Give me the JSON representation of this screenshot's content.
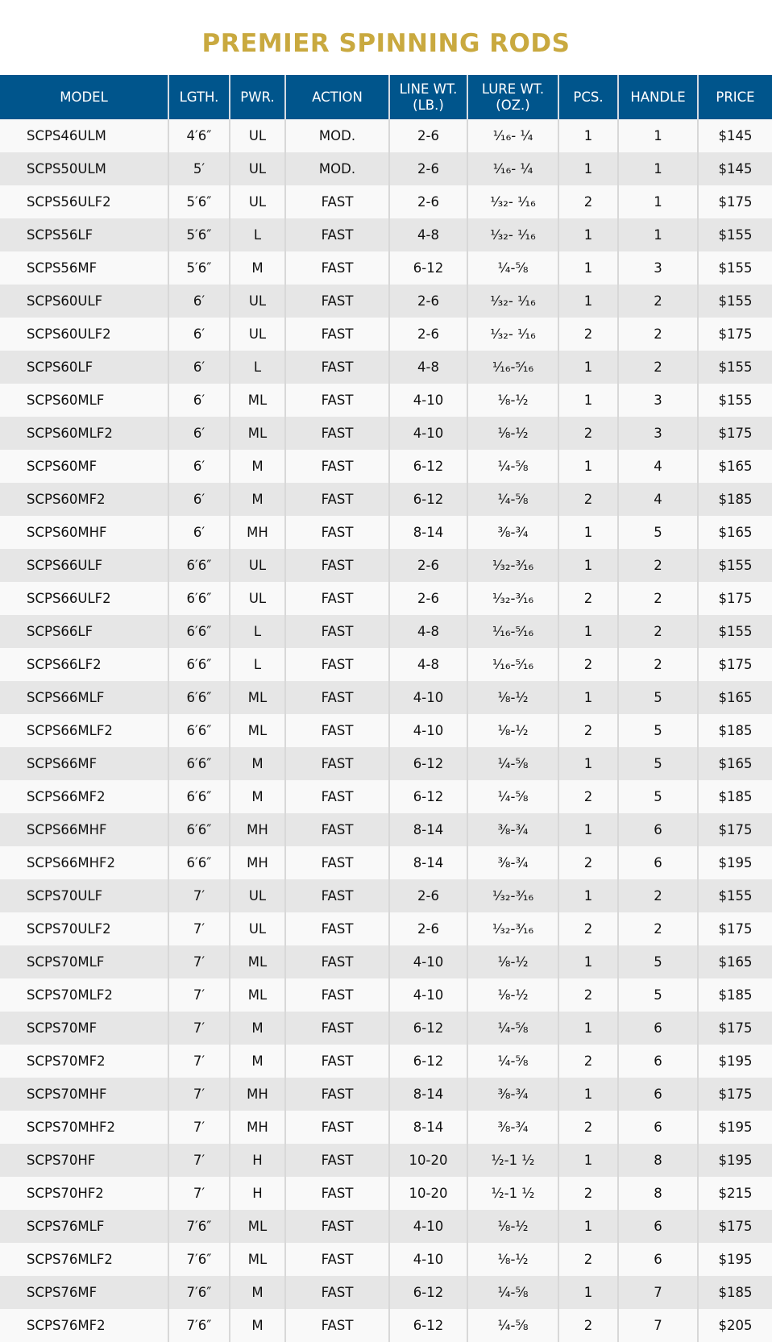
{
  "title": "PREMIER SPINNING RODS",
  "colors": {
    "title": "#c9a93f",
    "header_bg": "#00558c",
    "row_light": "#f9f9f9",
    "row_dark": "#e6e6e6"
  },
  "headers": [
    "MODEL",
    "LGTH.",
    "PWR.",
    "ACTION",
    "LINE WT.\n(LB.)",
    "LURE WT.\n(OZ.)",
    "PCS.",
    "HANDLE",
    "PRICE"
  ],
  "rows": [
    [
      "SCPS46ULM",
      "4′6″",
      "UL",
      "MOD.",
      "2-6",
      "¹⁄₁₆- ¼",
      "1",
      "1",
      "$145"
    ],
    [
      "SCPS50ULM",
      "5′",
      "UL",
      "MOD.",
      "2-6",
      "¹⁄₁₆- ¼",
      "1",
      "1",
      "$145"
    ],
    [
      "SCPS56ULF2",
      "5′6″",
      "UL",
      "FAST",
      "2-6",
      "¹⁄₃₂- ¹⁄₁₆",
      "2",
      "1",
      "$175"
    ],
    [
      "SCPS56LF",
      "5′6″",
      "L",
      "FAST",
      "4-8",
      "¹⁄₃₂- ¹⁄₁₆",
      "1",
      "1",
      "$155"
    ],
    [
      "SCPS56MF",
      "5′6″",
      "M",
      "FAST",
      "6-12",
      "¼-⅝",
      "1",
      "3",
      "$155"
    ],
    [
      "SCPS60ULF",
      "6′",
      "UL",
      "FAST",
      "2-6",
      "¹⁄₃₂- ¹⁄₁₆",
      "1",
      "2",
      "$155"
    ],
    [
      "SCPS60ULF2",
      "6′",
      "UL",
      "FAST",
      "2-6",
      "¹⁄₃₂- ¹⁄₁₆",
      "2",
      "2",
      "$175"
    ],
    [
      "SCPS60LF",
      "6′",
      "L",
      "FAST",
      "4-8",
      "¹⁄₁₆-⁵⁄₁₆",
      "1",
      "2",
      "$155"
    ],
    [
      "SCPS60MLF",
      "6′",
      "ML",
      "FAST",
      "4-10",
      "⅛-½",
      "1",
      "3",
      "$155"
    ],
    [
      "SCPS60MLF2",
      "6′",
      "ML",
      "FAST",
      "4-10",
      "⅛-½",
      "2",
      "3",
      "$175"
    ],
    [
      "SCPS60MF",
      "6′",
      "M",
      "FAST",
      "6-12",
      "¼-⅝",
      "1",
      "4",
      "$165"
    ],
    [
      "SCPS60MF2",
      "6′",
      "M",
      "FAST",
      "6-12",
      "¼-⅝",
      "2",
      "4",
      "$185"
    ],
    [
      "SCPS60MHF",
      "6′",
      "MH",
      "FAST",
      "8-14",
      "⅜-¾",
      "1",
      "5",
      "$165"
    ],
    [
      "SCPS66ULF",
      "6′6″",
      "UL",
      "FAST",
      "2-6",
      "¹⁄₃₂-³⁄₁₆",
      "1",
      "2",
      "$155"
    ],
    [
      "SCPS66ULF2",
      "6′6″",
      "UL",
      "FAST",
      "2-6",
      "¹⁄₃₂-³⁄₁₆",
      "2",
      "2",
      "$175"
    ],
    [
      "SCPS66LF",
      "6′6″",
      "L",
      "FAST",
      "4-8",
      "¹⁄₁₆-⁵⁄₁₆",
      "1",
      "2",
      "$155"
    ],
    [
      "SCPS66LF2",
      "6′6″",
      "L",
      "FAST",
      "4-8",
      "¹⁄₁₆-⁵⁄₁₆",
      "2",
      "2",
      "$175"
    ],
    [
      "SCPS66MLF",
      "6′6″",
      "ML",
      "FAST",
      "4-10",
      "⅛-½",
      "1",
      "5",
      "$165"
    ],
    [
      "SCPS66MLF2",
      "6′6″",
      "ML",
      "FAST",
      "4-10",
      "⅛-½",
      "2",
      "5",
      "$185"
    ],
    [
      "SCPS66MF",
      "6′6″",
      "M",
      "FAST",
      "6-12",
      "¼-⅝",
      "1",
      "5",
      "$165"
    ],
    [
      "SCPS66MF2",
      "6′6″",
      "M",
      "FAST",
      "6-12",
      "¼-⅝",
      "2",
      "5",
      "$185"
    ],
    [
      "SCPS66MHF",
      "6′6″",
      "MH",
      "FAST",
      "8-14",
      "⅜-¾",
      "1",
      "6",
      "$175"
    ],
    [
      "SCPS66MHF2",
      "6′6″",
      "MH",
      "FAST",
      "8-14",
      "⅜-¾",
      "2",
      "6",
      "$195"
    ],
    [
      "SCPS70ULF",
      "7′",
      "UL",
      "FAST",
      "2-6",
      "¹⁄₃₂-³⁄₁₆",
      "1",
      "2",
      "$155"
    ],
    [
      "SCPS70ULF2",
      "7′",
      "UL",
      "FAST",
      "2-6",
      "¹⁄₃₂-³⁄₁₆",
      "2",
      "2",
      "$175"
    ],
    [
      "SCPS70MLF",
      "7′",
      "ML",
      "FAST",
      "4-10",
      "⅛-½",
      "1",
      "5",
      "$165"
    ],
    [
      "SCPS70MLF2",
      "7′",
      "ML",
      "FAST",
      "4-10",
      "⅛-½",
      "2",
      "5",
      "$185"
    ],
    [
      "SCPS70MF",
      "7′",
      "M",
      "FAST",
      "6-12",
      "¼-⅝",
      "1",
      "6",
      "$175"
    ],
    [
      "SCPS70MF2",
      "7′",
      "M",
      "FAST",
      "6-12",
      "¼-⅝",
      "2",
      "6",
      "$195"
    ],
    [
      "SCPS70MHF",
      "7′",
      "MH",
      "FAST",
      "8-14",
      "⅜-¾",
      "1",
      "6",
      "$175"
    ],
    [
      "SCPS70MHF2",
      "7′",
      "MH",
      "FAST",
      "8-14",
      "⅜-¾",
      "2",
      "6",
      "$195"
    ],
    [
      "SCPS70HF",
      "7′",
      "H",
      "FAST",
      "10-20",
      "½-1 ½",
      "1",
      "8",
      "$195"
    ],
    [
      "SCPS70HF2",
      "7′",
      "H",
      "FAST",
      "10-20",
      "½-1 ½",
      "2",
      "8",
      "$215"
    ],
    [
      "SCPS76MLF",
      "7′6″",
      "ML",
      "FAST",
      "4-10",
      "⅛-½",
      "1",
      "6",
      "$175"
    ],
    [
      "SCPS76MLF2",
      "7′6″",
      "ML",
      "FAST",
      "4-10",
      "⅛-½",
      "2",
      "6",
      "$195"
    ],
    [
      "SCPS76MF",
      "7′6″",
      "M",
      "FAST",
      "6-12",
      "¼-⅝",
      "1",
      "7",
      "$185"
    ],
    [
      "SCPS76MF2",
      "7′6″",
      "M",
      "FAST",
      "6-12",
      "¼-⅝",
      "2",
      "7",
      "$205"
    ]
  ]
}
